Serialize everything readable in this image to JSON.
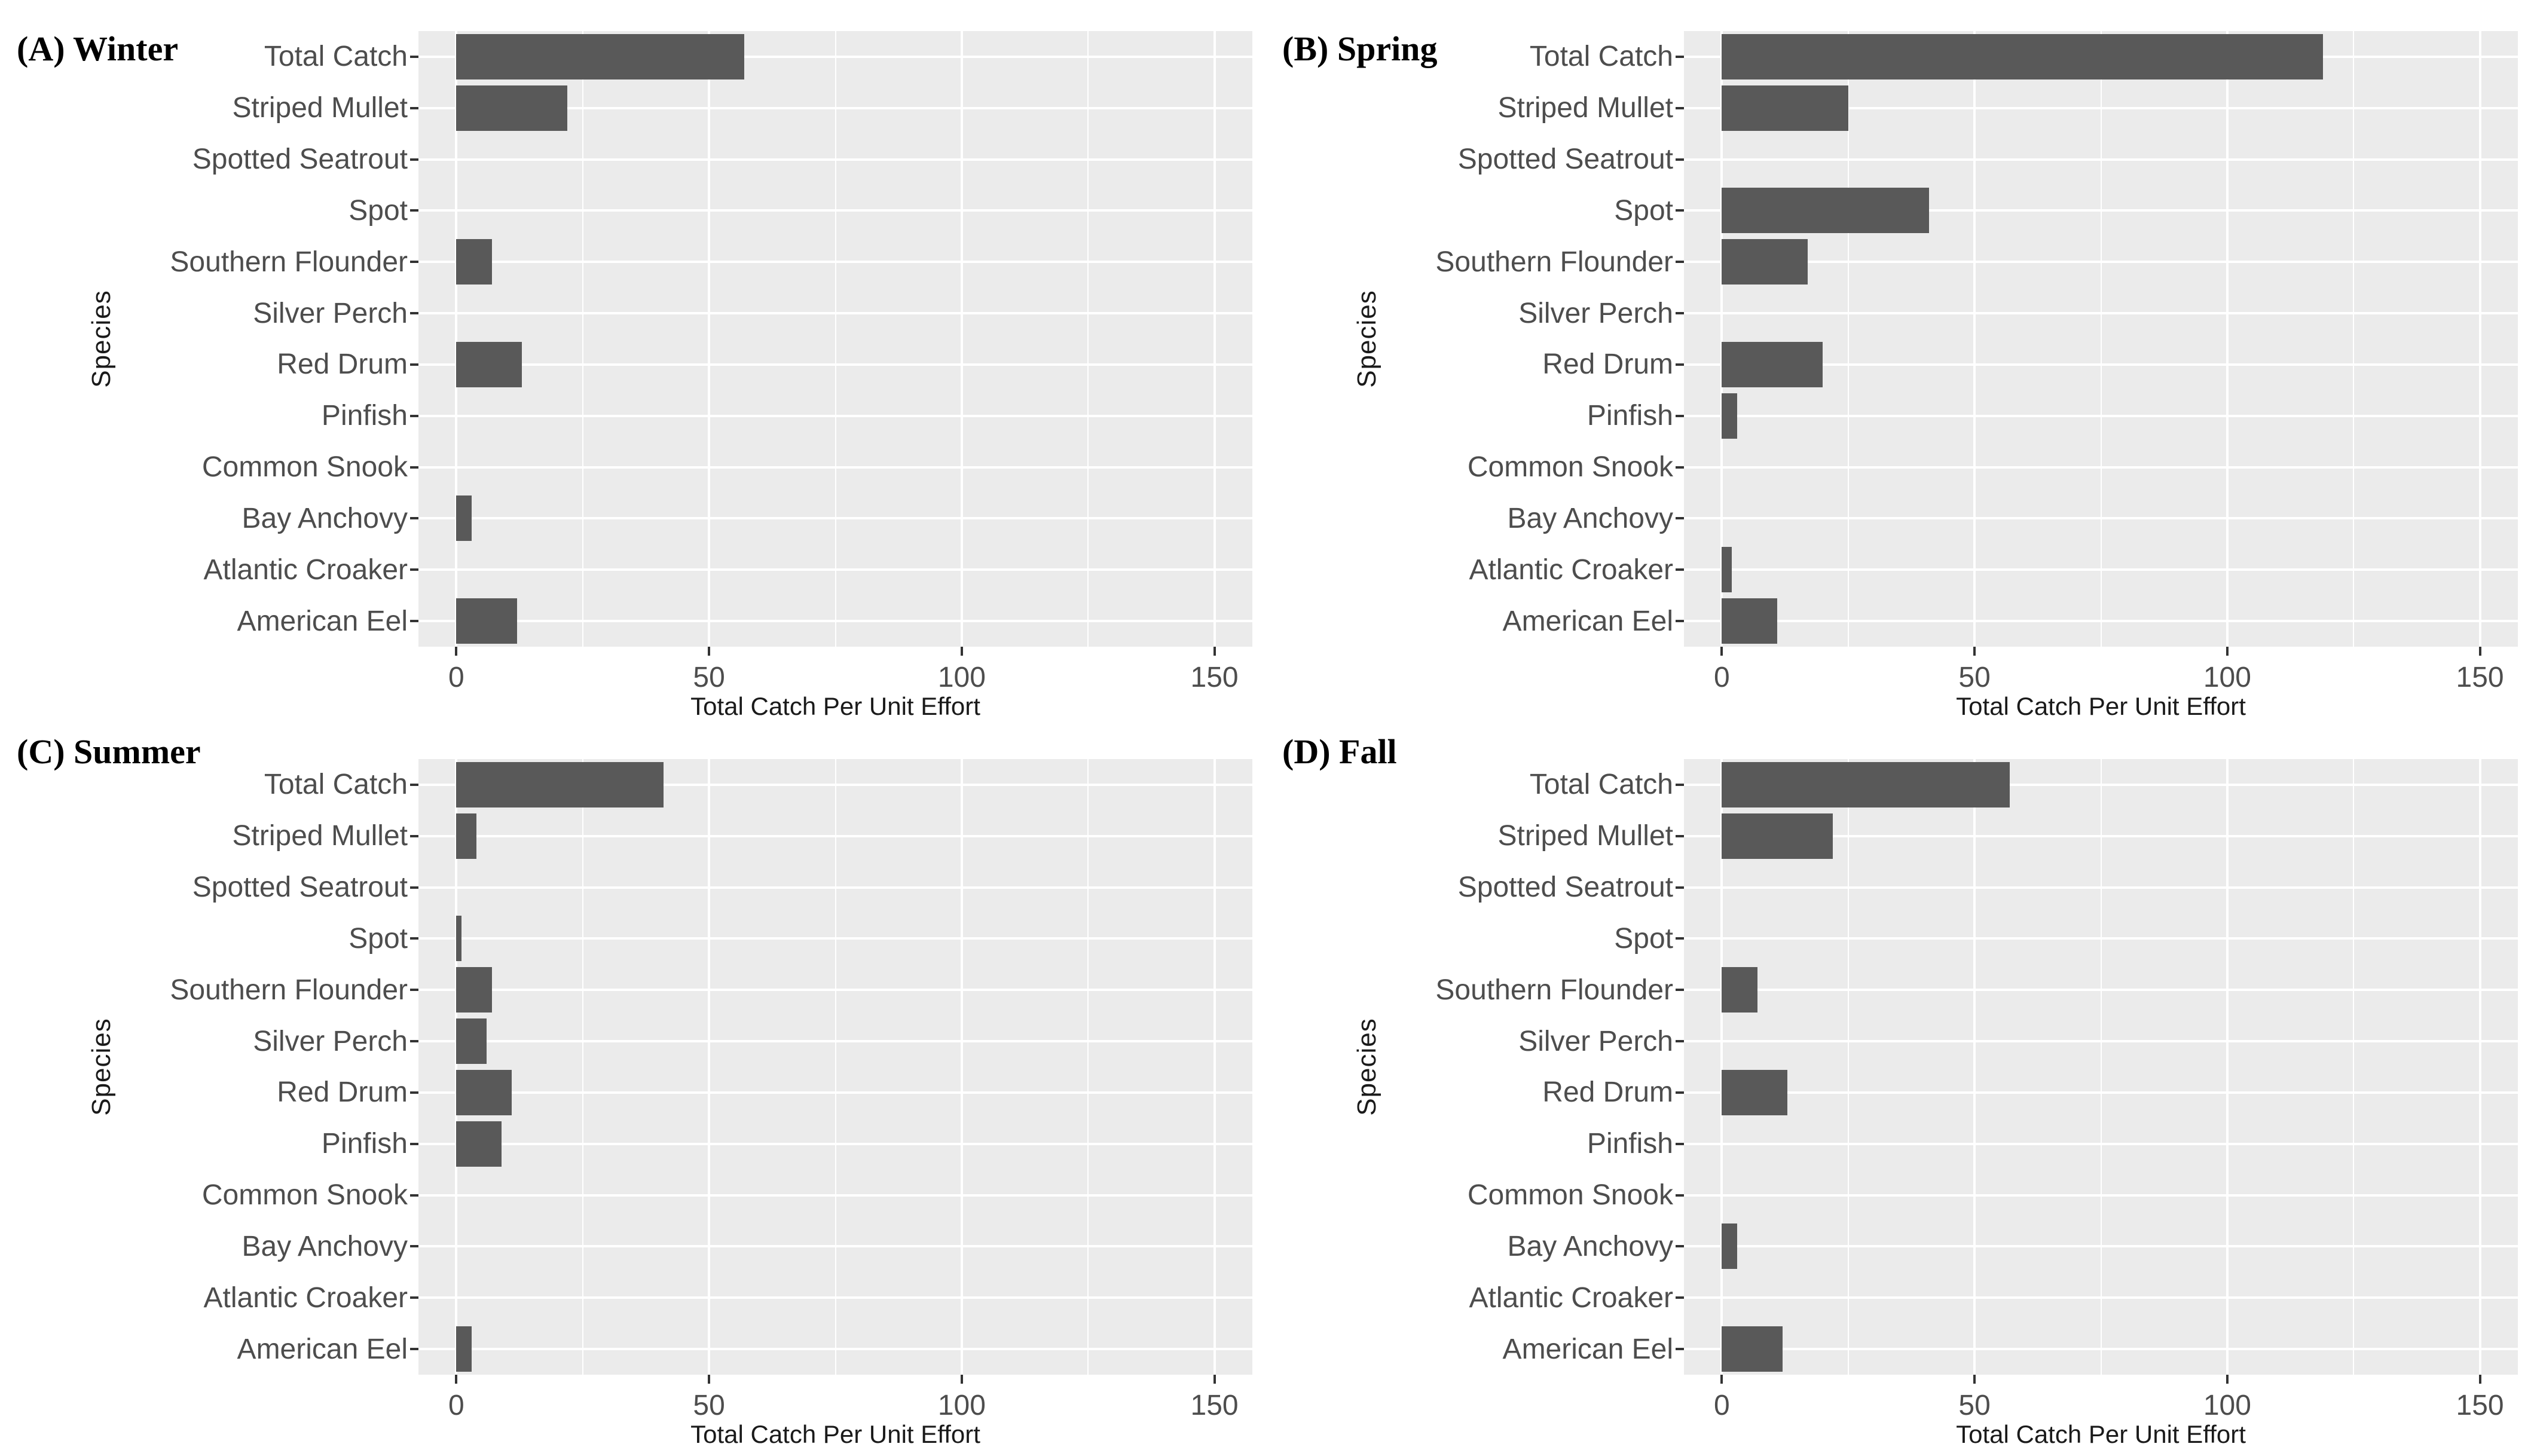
{
  "style": {
    "bar_color": "#595959",
    "panel_bg": "#EBEBEB",
    "grid_color": "#FFFFFF",
    "tick_color": "#333333",
    "tick_label_color": "#4D4D4D",
    "axis_title_color": "#1A1A1A",
    "title_color": "#000000"
  },
  "chart_data": [
    {
      "type": "bar",
      "orientation": "horizontal",
      "title": "(A) Winter",
      "xlabel": "Total Catch Per Unit Effort",
      "ylabel": "Species",
      "categories": [
        "Total Catch",
        "Striped Mullet",
        "Spotted Seatrout",
        "Spot",
        "Southern Flounder",
        "Silver Perch",
        "Red Drum",
        "Pinfish",
        "Common Snook",
        "Bay Anchovy",
        "Atlantic Croaker",
        "American Eel"
      ],
      "values": [
        57,
        22,
        0,
        0,
        7,
        0,
        13,
        0,
        0,
        3,
        0,
        12
      ],
      "xticks": [
        0,
        50,
        100,
        150
      ],
      "xlim": [
        0,
        150
      ],
      "x_range_shown": [
        -7.5,
        157.5
      ],
      "grid": "major-and-minor",
      "legend": "none"
    },
    {
      "type": "bar",
      "orientation": "horizontal",
      "title": "(B) Spring",
      "xlabel": "Total Catch Per Unit Effort",
      "ylabel": "Species",
      "categories": [
        "Total Catch",
        "Striped Mullet",
        "Spotted Seatrout",
        "Spot",
        "Southern Flounder",
        "Silver Perch",
        "Red Drum",
        "Pinfish",
        "Common Snook",
        "Bay Anchovy",
        "Atlantic Croaker",
        "American Eel"
      ],
      "values": [
        119,
        25,
        0,
        41,
        17,
        0,
        20,
        3,
        0,
        0,
        2,
        11
      ],
      "xticks": [
        0,
        50,
        100,
        150
      ],
      "xlim": [
        0,
        150
      ],
      "x_range_shown": [
        -7.5,
        157.5
      ],
      "grid": "major-and-minor",
      "legend": "none"
    },
    {
      "type": "bar",
      "orientation": "horizontal",
      "title": "(C) Summer",
      "xlabel": "Total Catch Per Unit Effort",
      "ylabel": "Species",
      "categories": [
        "Total Catch",
        "Striped Mullet",
        "Spotted Seatrout",
        "Spot",
        "Southern Flounder",
        "Silver Perch",
        "Red Drum",
        "Pinfish",
        "Common Snook",
        "Bay Anchovy",
        "Atlantic Croaker",
        "American Eel"
      ],
      "values": [
        41,
        4,
        0,
        1,
        7,
        6,
        11,
        9,
        0,
        0,
        0,
        3
      ],
      "xticks": [
        0,
        50,
        100,
        150
      ],
      "xlim": [
        0,
        150
      ],
      "x_range_shown": [
        -7.5,
        157.5
      ],
      "grid": "major-and-minor",
      "legend": "none"
    },
    {
      "type": "bar",
      "orientation": "horizontal",
      "title": "(D) Fall",
      "xlabel": "Total Catch Per Unit Effort",
      "ylabel": "Species",
      "categories": [
        "Total Catch",
        "Striped Mullet",
        "Spotted Seatrout",
        "Spot",
        "Southern Flounder",
        "Silver Perch",
        "Red Drum",
        "Pinfish",
        "Common Snook",
        "Bay Anchovy",
        "Atlantic Croaker",
        "American Eel"
      ],
      "values": [
        57,
        22,
        0,
        0,
        7,
        0,
        13,
        0,
        0,
        3,
        0,
        12
      ],
      "xticks": [
        0,
        50,
        100,
        150
      ],
      "xlim": [
        0,
        150
      ],
      "x_range_shown": [
        -7.5,
        157.5
      ],
      "grid": "major-and-minor",
      "legend": "none"
    }
  ]
}
